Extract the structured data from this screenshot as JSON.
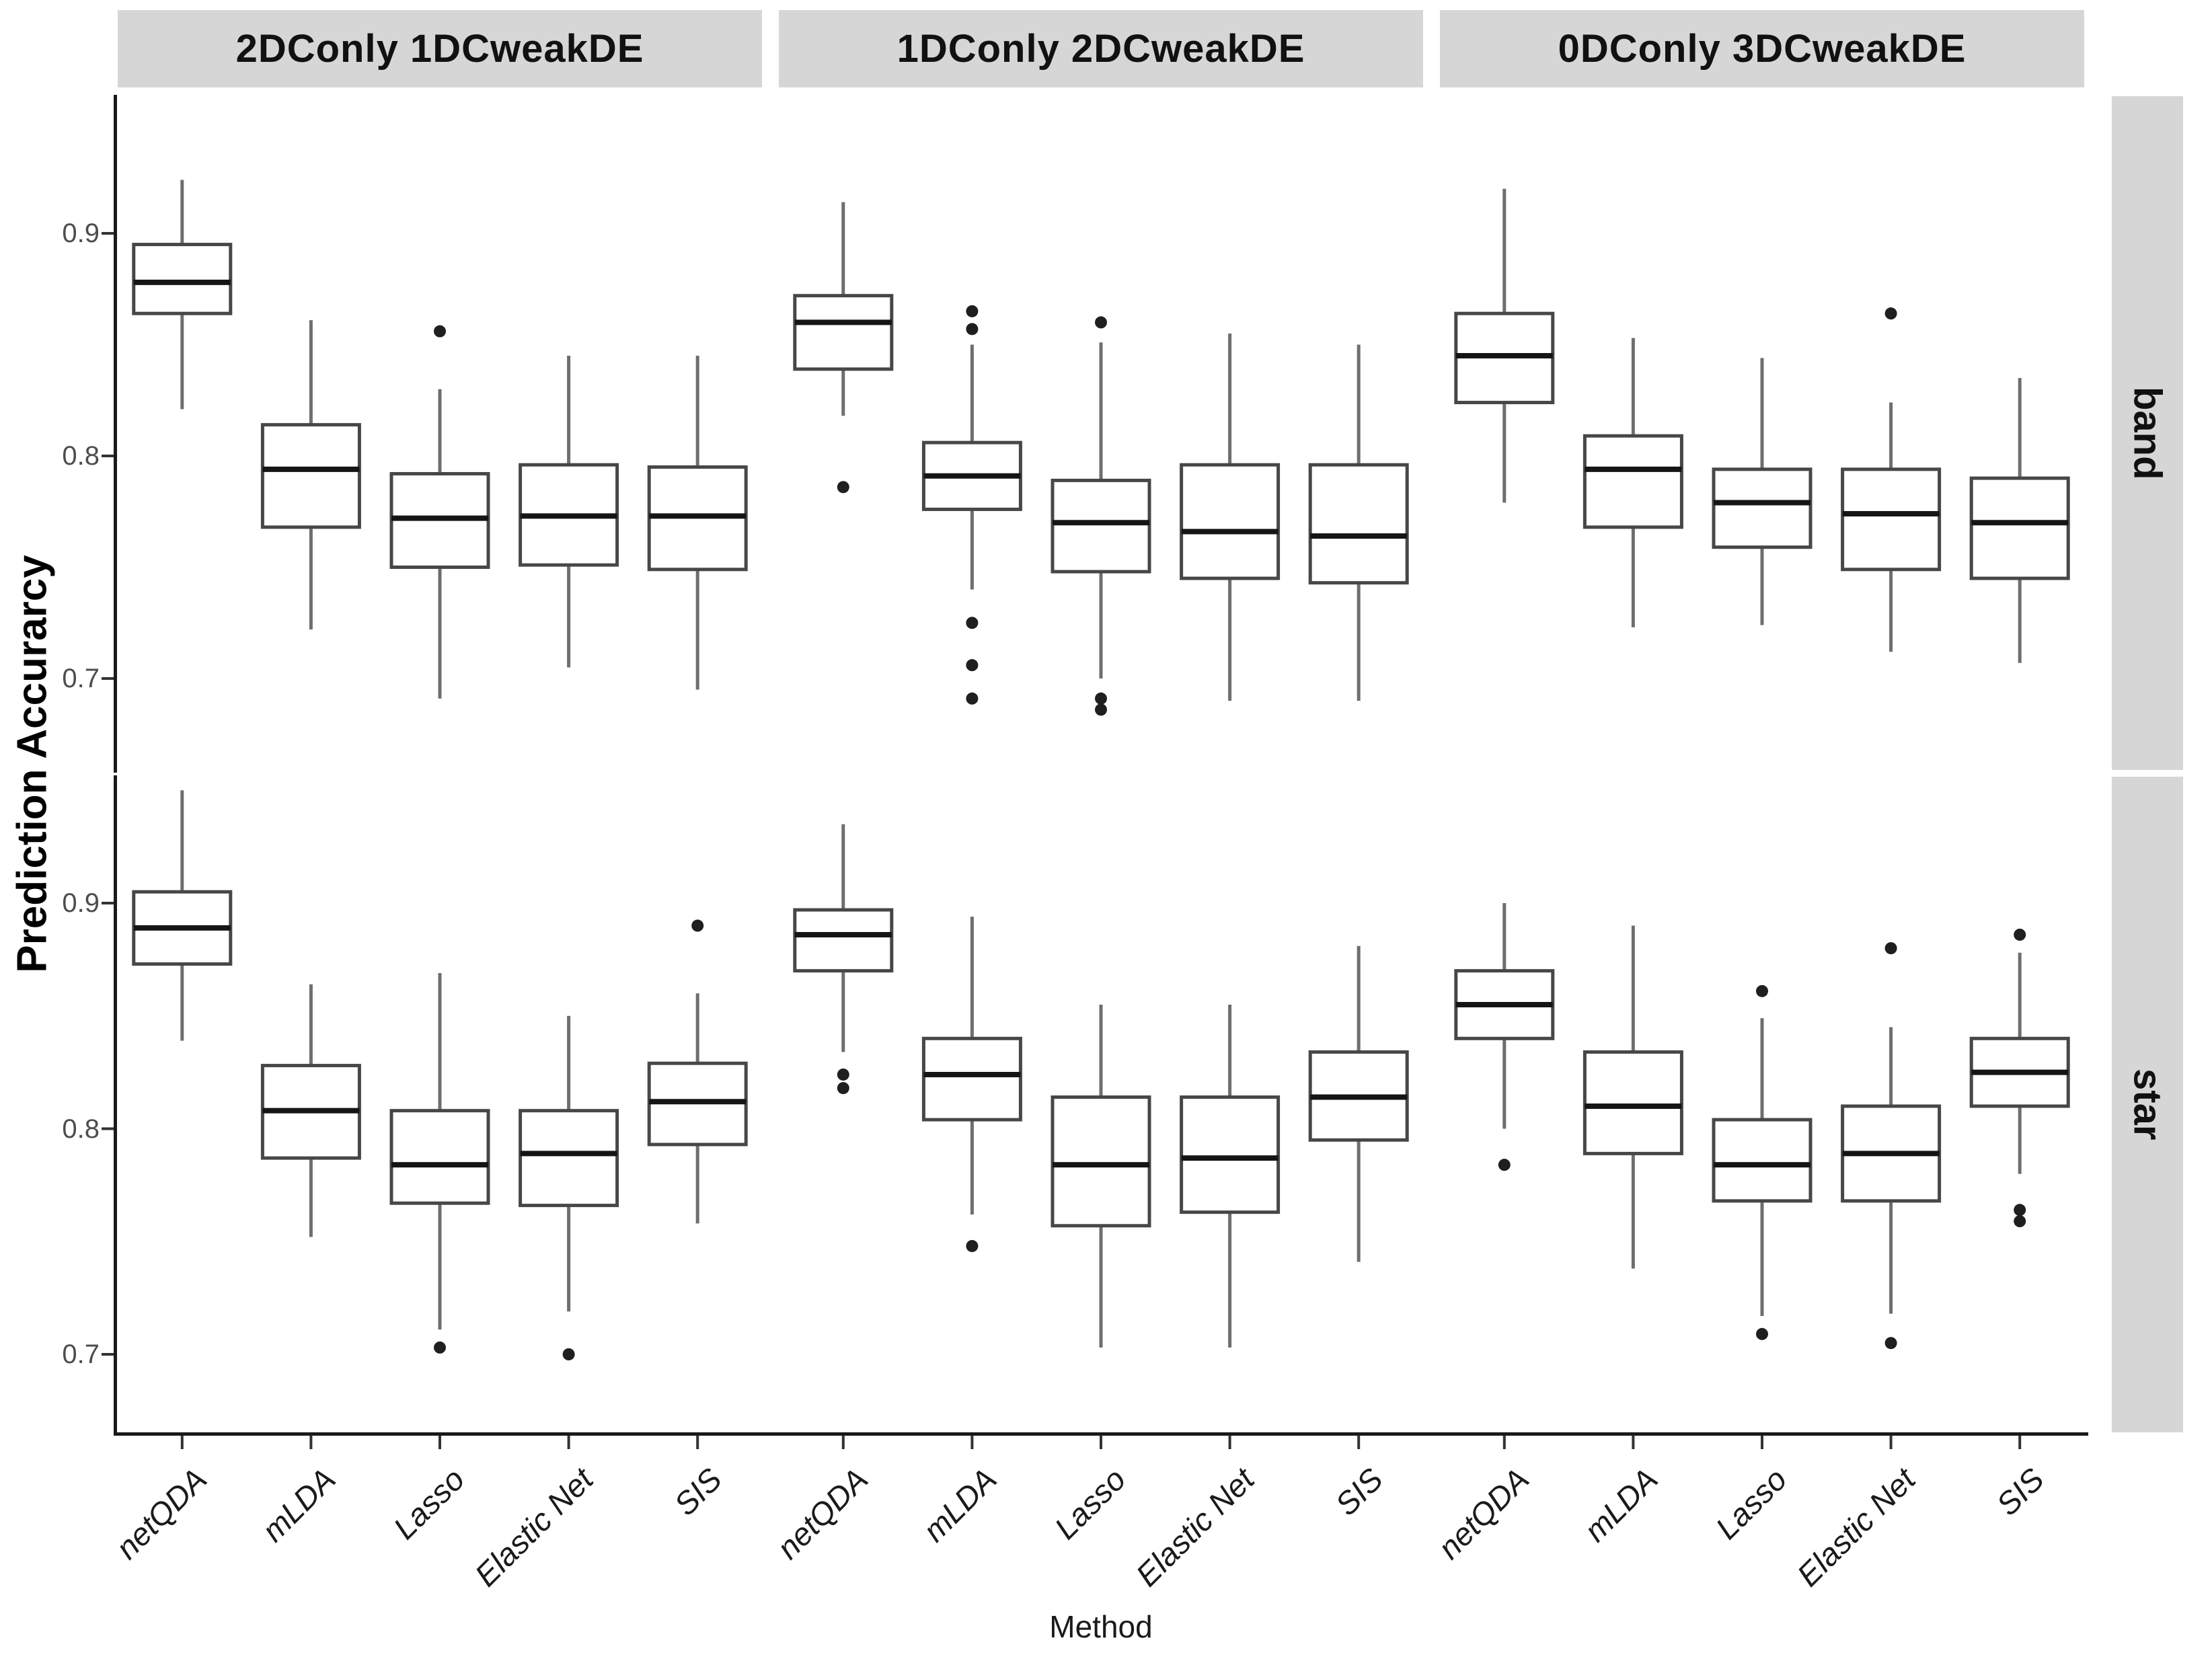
{
  "figure": {
    "background": "#ffffff",
    "strip_bg": "#d6d6d6",
    "axis_line_color": "#1a1a1a",
    "tick_mark_color": "#333333",
    "tick_label_color": "#4d4d4d",
    "box_border_color": "#474747",
    "box_fill_color": "#ffffff",
    "whisker_color": "#6e6e6e",
    "median_color": "#151515",
    "outlier_color": "#1f1f1f"
  },
  "chart_data": {
    "type": "boxplot",
    "title": "",
    "xlabel": "Method",
    "ylabel": "Prediction Accurarcy",
    "legend": "none",
    "grid": false,
    "col_facets": [
      "2DConly 1DCweakDE",
      "1DConly 2DCweakDE",
      "0DConly 3DCweakDE"
    ],
    "row_facets": [
      "band",
      "star"
    ],
    "categories": [
      "netQDA",
      "mLDA",
      "Lasso",
      "Elastic Net",
      "SIS"
    ],
    "y_ticks": [
      0.9,
      0.8,
      0.7
    ],
    "ylim": [
      0.66,
      0.96
    ],
    "facets": [
      {
        "row": "band",
        "col": "2DConly 1DCweakDE",
        "boxes": [
          {
            "method": "netQDA",
            "whisker_low": 0.821,
            "q1": 0.864,
            "median": 0.878,
            "q3": 0.895,
            "whisker_high": 0.924,
            "outliers": []
          },
          {
            "method": "mLDA",
            "whisker_low": 0.722,
            "q1": 0.768,
            "median": 0.794,
            "q3": 0.814,
            "whisker_high": 0.861,
            "outliers": []
          },
          {
            "method": "Lasso",
            "whisker_low": 0.691,
            "q1": 0.75,
            "median": 0.772,
            "q3": 0.792,
            "whisker_high": 0.83,
            "outliers": [
              0.856
            ]
          },
          {
            "method": "Elastic Net",
            "whisker_low": 0.705,
            "q1": 0.751,
            "median": 0.773,
            "q3": 0.796,
            "whisker_high": 0.845,
            "outliers": []
          },
          {
            "method": "SIS",
            "whisker_low": 0.695,
            "q1": 0.749,
            "median": 0.773,
            "q3": 0.795,
            "whisker_high": 0.845,
            "outliers": []
          }
        ]
      },
      {
        "row": "band",
        "col": "1DConly 2DCweakDE",
        "boxes": [
          {
            "method": "netQDA",
            "whisker_low": 0.818,
            "q1": 0.839,
            "median": 0.86,
            "q3": 0.872,
            "whisker_high": 0.914,
            "outliers": [
              0.786
            ]
          },
          {
            "method": "mLDA",
            "whisker_low": 0.74,
            "q1": 0.776,
            "median": 0.791,
            "q3": 0.806,
            "whisker_high": 0.85,
            "outliers": [
              0.865,
              0.857,
              0.725,
              0.706,
              0.691
            ]
          },
          {
            "method": "Lasso",
            "whisker_low": 0.7,
            "q1": 0.748,
            "median": 0.77,
            "q3": 0.789,
            "whisker_high": 0.851,
            "outliers": [
              0.86,
              0.691,
              0.686
            ]
          },
          {
            "method": "Elastic Net",
            "whisker_low": 0.69,
            "q1": 0.745,
            "median": 0.766,
            "q3": 0.796,
            "whisker_high": 0.855,
            "outliers": []
          },
          {
            "method": "SIS",
            "whisker_low": 0.69,
            "q1": 0.743,
            "median": 0.764,
            "q3": 0.796,
            "whisker_high": 0.85,
            "outliers": []
          }
        ]
      },
      {
        "row": "band",
        "col": "0DConly 3DCweakDE",
        "boxes": [
          {
            "method": "netQDA",
            "whisker_low": 0.779,
            "q1": 0.824,
            "median": 0.845,
            "q3": 0.864,
            "whisker_high": 0.92,
            "outliers": []
          },
          {
            "method": "mLDA",
            "whisker_low": 0.723,
            "q1": 0.768,
            "median": 0.794,
            "q3": 0.809,
            "whisker_high": 0.853,
            "outliers": []
          },
          {
            "method": "Lasso",
            "whisker_low": 0.724,
            "q1": 0.759,
            "median": 0.779,
            "q3": 0.794,
            "whisker_high": 0.844,
            "outliers": []
          },
          {
            "method": "Elastic Net",
            "whisker_low": 0.712,
            "q1": 0.749,
            "median": 0.774,
            "q3": 0.794,
            "whisker_high": 0.824,
            "outliers": [
              0.864
            ]
          },
          {
            "method": "SIS",
            "whisker_low": 0.707,
            "q1": 0.745,
            "median": 0.77,
            "q3": 0.79,
            "whisker_high": 0.835,
            "outliers": []
          }
        ]
      },
      {
        "row": "star",
        "col": "2DConly 1DCweakDE",
        "boxes": [
          {
            "method": "netQDA",
            "whisker_low": 0.839,
            "q1": 0.873,
            "median": 0.889,
            "q3": 0.905,
            "whisker_high": 0.95,
            "outliers": []
          },
          {
            "method": "mLDA",
            "whisker_low": 0.752,
            "q1": 0.787,
            "median": 0.808,
            "q3": 0.828,
            "whisker_high": 0.864,
            "outliers": []
          },
          {
            "method": "Lasso",
            "whisker_low": 0.711,
            "q1": 0.767,
            "median": 0.784,
            "q3": 0.808,
            "whisker_high": 0.869,
            "outliers": [
              0.703
            ]
          },
          {
            "method": "Elastic Net",
            "whisker_low": 0.719,
            "q1": 0.766,
            "median": 0.789,
            "q3": 0.808,
            "whisker_high": 0.85,
            "outliers": [
              0.7
            ]
          },
          {
            "method": "SIS",
            "whisker_low": 0.758,
            "q1": 0.793,
            "median": 0.812,
            "q3": 0.829,
            "whisker_high": 0.86,
            "outliers": [
              0.89
            ]
          }
        ]
      },
      {
        "row": "star",
        "col": "1DConly 2DCweakDE",
        "boxes": [
          {
            "method": "netQDA",
            "whisker_low": 0.834,
            "q1": 0.87,
            "median": 0.886,
            "q3": 0.897,
            "whisker_high": 0.935,
            "outliers": [
              0.824,
              0.818
            ]
          },
          {
            "method": "mLDA",
            "whisker_low": 0.762,
            "q1": 0.804,
            "median": 0.824,
            "q3": 0.84,
            "whisker_high": 0.894,
            "outliers": [
              0.748
            ]
          },
          {
            "method": "Lasso",
            "whisker_low": 0.703,
            "q1": 0.757,
            "median": 0.784,
            "q3": 0.814,
            "whisker_high": 0.855,
            "outliers": []
          },
          {
            "method": "Elastic Net",
            "whisker_low": 0.703,
            "q1": 0.763,
            "median": 0.787,
            "q3": 0.814,
            "whisker_high": 0.855,
            "outliers": []
          },
          {
            "method": "SIS",
            "whisker_low": 0.741,
            "q1": 0.795,
            "median": 0.814,
            "q3": 0.834,
            "whisker_high": 0.881,
            "outliers": []
          }
        ]
      },
      {
        "row": "star",
        "col": "0DConly 3DCweakDE",
        "boxes": [
          {
            "method": "netQDA",
            "whisker_low": 0.8,
            "q1": 0.84,
            "median": 0.855,
            "q3": 0.87,
            "whisker_high": 0.9,
            "outliers": [
              0.784
            ]
          },
          {
            "method": "mLDA",
            "whisker_low": 0.738,
            "q1": 0.789,
            "median": 0.81,
            "q3": 0.834,
            "whisker_high": 0.89,
            "outliers": []
          },
          {
            "method": "Lasso",
            "whisker_low": 0.717,
            "q1": 0.768,
            "median": 0.784,
            "q3": 0.804,
            "whisker_high": 0.849,
            "outliers": [
              0.861,
              0.709
            ]
          },
          {
            "method": "Elastic Net",
            "whisker_low": 0.718,
            "q1": 0.768,
            "median": 0.789,
            "q3": 0.81,
            "whisker_high": 0.845,
            "outliers": [
              0.88,
              0.705
            ]
          },
          {
            "method": "SIS",
            "whisker_low": 0.78,
            "q1": 0.81,
            "median": 0.825,
            "q3": 0.84,
            "whisker_high": 0.878,
            "outliers": [
              0.886,
              0.764,
              0.759
            ]
          }
        ]
      }
    ]
  }
}
